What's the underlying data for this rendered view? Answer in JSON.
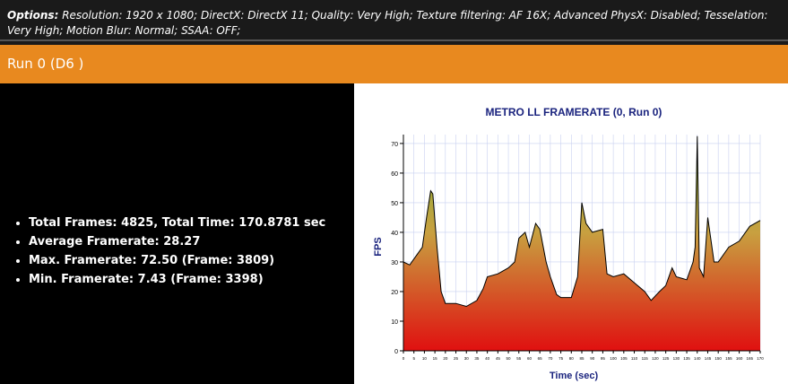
{
  "header": {
    "label": "Options:",
    "text": "Resolution: 1920 x 1080; DirectX: DirectX 11; Quality: Very High; Texture filtering: AF 16X; Advanced PhysX: Disabled; Tesselation: Very High; Motion Blur: Normal; SSAA: OFF;"
  },
  "run_title": "Run 0 (D6 )",
  "stats": [
    "Total Frames: 4825, Total Time: 170.8781 sec",
    "Average Framerate: 28.27",
    "Max. Framerate: 72.50 (Frame: 3809)",
    "Min. Framerate: 7.43 (Frame: 3398)"
  ],
  "chart_data": {
    "type": "area",
    "title": "METRO LL FRAMERATE (0, Run 0)",
    "x_label": "Time (sec)",
    "y_label": "FPS",
    "x": [
      0,
      3,
      6,
      9,
      11,
      13,
      14,
      16,
      18,
      20,
      25,
      30,
      35,
      38,
      40,
      45,
      50,
      53,
      55,
      58,
      60,
      63,
      65,
      68,
      70,
      73,
      75,
      80,
      83,
      85,
      87,
      90,
      95,
      97,
      100,
      105,
      110,
      115,
      118,
      122,
      125,
      128,
      130,
      135,
      138,
      139,
      140,
      141,
      143,
      145,
      148,
      150,
      155,
      160,
      165,
      170
    ],
    "values": [
      30,
      29,
      32,
      35,
      45,
      54,
      53,
      35,
      20,
      16,
      16,
      15,
      17,
      21,
      25,
      26,
      28,
      30,
      38,
      40,
      35,
      43,
      41,
      30,
      25,
      19,
      18,
      18,
      25,
      50,
      43,
      40,
      41,
      26,
      25,
      26,
      23,
      20,
      17,
      20,
      22,
      28,
      25,
      24,
      30,
      35,
      72.5,
      28,
      25,
      45,
      30,
      30,
      35,
      37,
      42,
      44
    ],
    "color": "#000000",
    "xlim": [
      0,
      170
    ],
    "xticks": [
      0,
      5,
      10,
      15,
      20,
      25,
      30,
      35,
      40,
      45,
      50,
      55,
      60,
      65,
      70,
      75,
      80,
      85,
      90,
      95,
      100,
      105,
      110,
      115,
      120,
      125,
      130,
      135,
      140,
      145,
      150,
      155,
      160,
      165,
      170
    ],
    "ylim": [
      0,
      73
    ],
    "yticks": [
      0,
      10,
      20,
      30,
      40,
      50,
      60,
      70
    ],
    "grid": true
  }
}
